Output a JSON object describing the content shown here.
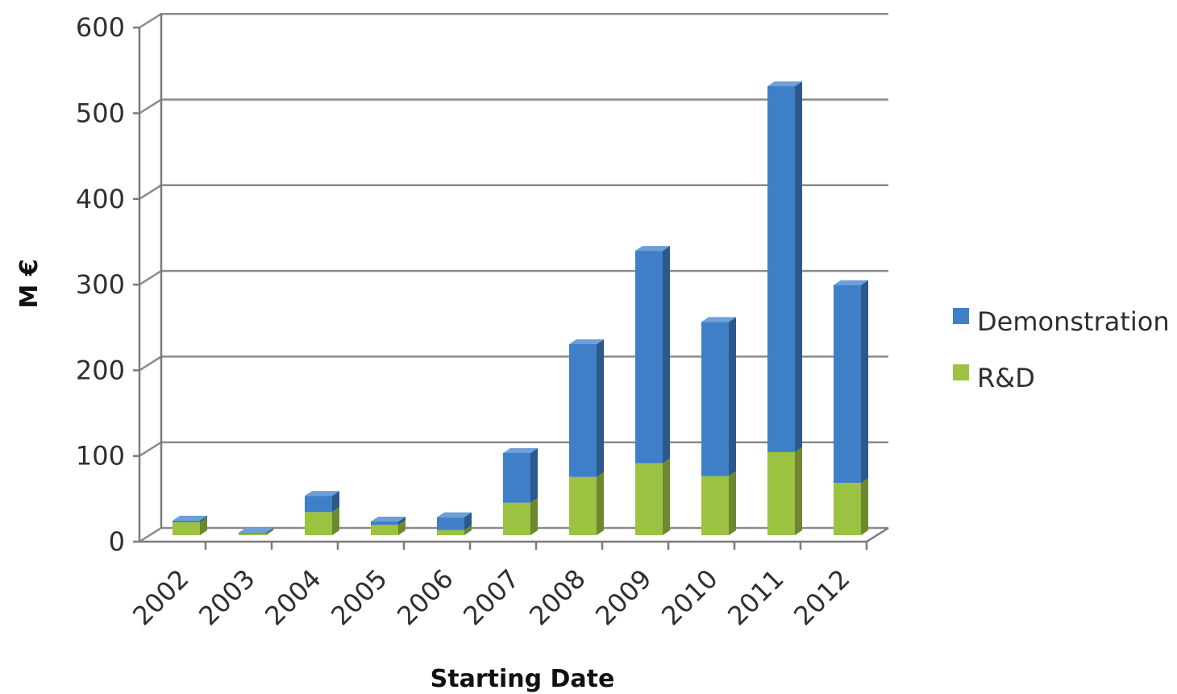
{
  "chart_data": {
    "type": "bar",
    "stacked": true,
    "three_d": true,
    "title": "",
    "xlabel": "Starting Date",
    "ylabel": "M €",
    "ylim": [
      0,
      600
    ],
    "yticks": [
      "0",
      "100",
      "200",
      "300",
      "400",
      "500",
      "600"
    ],
    "grid": true,
    "legend_position": "right",
    "categories": [
      "2002",
      "2003",
      "2004",
      "2005",
      "2006",
      "2007",
      "2008",
      "2009",
      "2010",
      "2011",
      "2012"
    ],
    "series": [
      {
        "name": "R&D",
        "color": "#9bc241",
        "values": [
          15,
          2,
          27,
          12,
          6,
          38,
          68,
          84,
          69,
          97,
          61
        ]
      },
      {
        "name": "Demonstration",
        "color": "#3f7fc8",
        "values": [
          2,
          1,
          19,
          4,
          15,
          58,
          155,
          248,
          180,
          427,
          231
        ]
      }
    ],
    "legend": [
      {
        "label": "Demonstration",
        "color": "#3f7fc8"
      },
      {
        "label": "R&D",
        "color": "#9bc241"
      }
    ]
  }
}
